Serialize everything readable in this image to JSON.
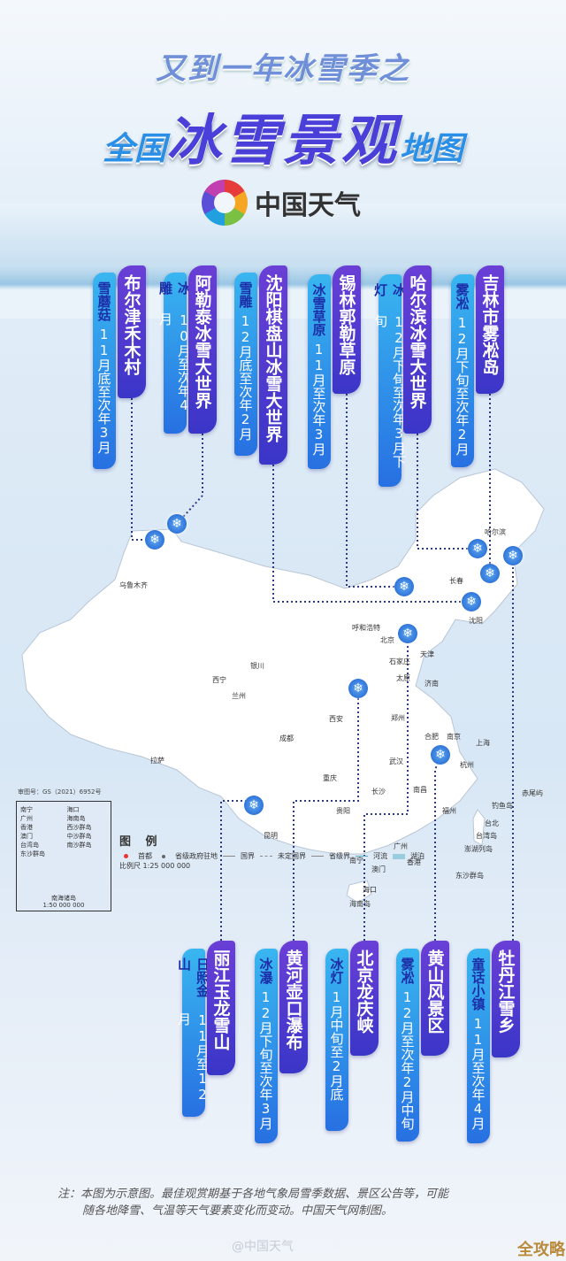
{
  "header": {
    "subtitle": "又到一年冰雪季之",
    "title_prefix": "全国",
    "title_main": "冰雪景观",
    "title_suffix": "地图",
    "logo_text": "中国天气"
  },
  "colors": {
    "name_tag": "#4a3ad0",
    "info_tag": "#2f8fe8",
    "marker": "#1c5fd0",
    "map_land": "#ffffff",
    "sea": "#d6e6f5"
  },
  "top_spots": [
    {
      "name": "布尔津禾木村",
      "type": "雪蘑菇",
      "period": "11月底至次年3月"
    },
    {
      "name": "阿勒泰冰雪大世界",
      "type": "冰雕",
      "period": "10月至次年4月"
    },
    {
      "name": "沈阳棋盘山冰雪大世界",
      "type": "雪雕",
      "period": "12月底至次年2月"
    },
    {
      "name": "锡林郭勒草原",
      "type": "冰雪草原",
      "period": "11月至次年3月"
    },
    {
      "name": "哈尔滨冰雪大世界",
      "type": "冰灯",
      "period": "12月下旬至次年3月下旬"
    },
    {
      "name": "吉林市雾凇岛",
      "type": "雾凇",
      "period": "12月下旬至次年2月"
    }
  ],
  "bottom_spots": [
    {
      "name": "丽江玉龙雪山",
      "type": "日照金山",
      "period": "11月至12月"
    },
    {
      "name": "黄河壶口瀑布",
      "type": "冰瀑",
      "period": "12月下旬至次年3月"
    },
    {
      "name": "北京龙庆峡",
      "type": "冰灯",
      "period": "1月中旬至2月底"
    },
    {
      "name": "黄山风景区",
      "type": "雾凇",
      "period": "12月至次年2月中旬"
    },
    {
      "name": "牡丹江雪乡",
      "type": "童话小镇",
      "period": "11月至次年4月"
    }
  ],
  "map": {
    "approval_no": "审图号：GS（2021）6952号",
    "cities": [
      "乌鲁木齐",
      "拉萨",
      "西宁",
      "兰州",
      "银川",
      "呼和浩特",
      "北京",
      "天津",
      "石家庄",
      "太原",
      "济南",
      "郑州",
      "西安",
      "成都",
      "重庆",
      "贵阳",
      "昆明",
      "南宁",
      "广州",
      "香港",
      "澳门",
      "海口",
      "海南岛",
      "长沙",
      "武汉",
      "南昌",
      "合肥",
      "南京",
      "上海",
      "杭州",
      "福州",
      "台北",
      "台湾岛",
      "钓鱼岛",
      "赤尾屿",
      "澎湖列岛",
      "东沙群岛",
      "沈阳",
      "长春",
      "哈尔滨"
    ],
    "legend": {
      "title": "图 例",
      "items": [
        "首都",
        "省级政府驻地",
        "国界",
        "未定国界",
        "省级界",
        "河流",
        "湖泊"
      ],
      "scale": "比例尺 1:25 000 000"
    },
    "inset": {
      "labels": [
        "南宁",
        "广州",
        "香港",
        "澳门",
        "台湾岛",
        "东沙群岛",
        "海口",
        "海南岛",
        "西沙群岛",
        "中沙群岛",
        "南沙群岛"
      ],
      "title": "南海诸岛",
      "scale": "1:50 000 000"
    }
  },
  "footer": {
    "note_line1": "注：本图为示意图。最佳观赏期基于各地气象局雪季数据、景区公告等，可能",
    "note_line2": "随各地降雪、气温等天气要素变化而变动。中国天气网制图。",
    "watermark": "@中国天气",
    "badge": "全攻略"
  }
}
